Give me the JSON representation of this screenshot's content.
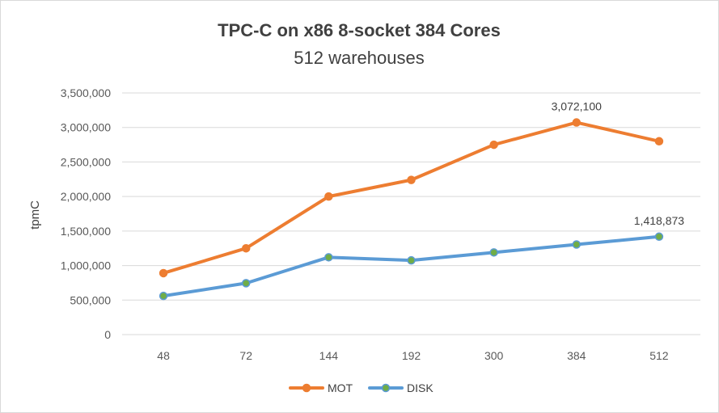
{
  "chart_data": {
    "type": "line",
    "title": "TPC-C on x86 8-socket 384 Cores",
    "subtitle": "512 warehouses",
    "xlabel": "",
    "ylabel": "tpmC",
    "categories": [
      "48",
      "72",
      "144",
      "192",
      "300",
      "384",
      "512"
    ],
    "ylim": [
      0,
      3500000
    ],
    "ytick_labels": [
      "0",
      "500,000",
      "1,000,000",
      "1,500,000",
      "2,000,000",
      "2,500,000",
      "3,000,000",
      "3,500,000"
    ],
    "grid": true,
    "legend_position": "bottom",
    "series": [
      {
        "name": "MOT",
        "color": "#ED7D31",
        "marker_color": "#ED7D31",
        "values": [
          890000,
          1250000,
          2000000,
          2240000,
          2750000,
          3072100,
          2800000
        ],
        "labels": [
          null,
          null,
          null,
          null,
          null,
          "3,072,100",
          null
        ]
      },
      {
        "name": "DISK",
        "color": "#5B9BD5",
        "marker_color": "#70AD47",
        "values": [
          560000,
          745000,
          1120000,
          1075000,
          1190000,
          1305000,
          1418873
        ],
        "labels": [
          null,
          null,
          null,
          null,
          null,
          null,
          "1,418,873"
        ]
      }
    ]
  }
}
